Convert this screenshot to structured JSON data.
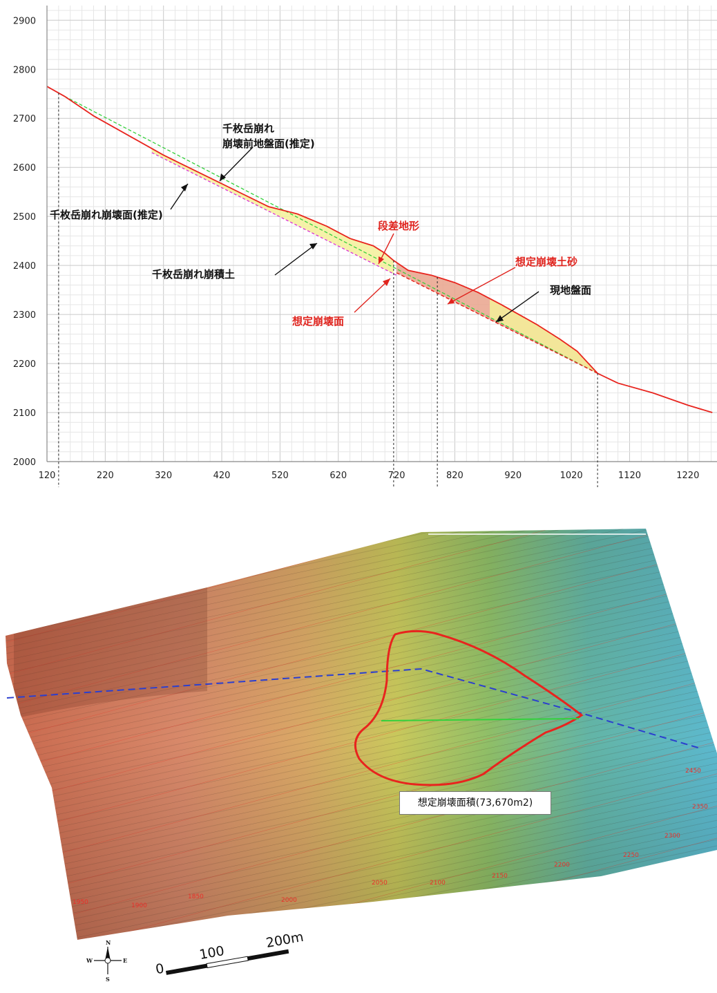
{
  "chart_data": {
    "type": "line",
    "title": "",
    "xlabel": "",
    "ylabel": "",
    "xlim": [
      120,
      1270
    ],
    "ylim": [
      2000,
      2930
    ],
    "x_ticks": [
      "120",
      "220",
      "320",
      "420",
      "520",
      "620",
      "720",
      "820",
      "920",
      "1020",
      "1120",
      "1220"
    ],
    "y_ticks": [
      "2000",
      "2100",
      "2200",
      "2300",
      "2400",
      "2500",
      "2600",
      "2700",
      "2800",
      "2900"
    ],
    "grid": true,
    "series": [
      {
        "name": "現地盤面",
        "color": "#e8241e",
        "points": [
          [
            120,
            2765
          ],
          [
            150,
            2745
          ],
          [
            200,
            2705
          ],
          [
            260,
            2665
          ],
          [
            320,
            2625
          ],
          [
            380,
            2590
          ],
          [
            440,
            2555
          ],
          [
            500,
            2520
          ],
          [
            550,
            2505
          ],
          [
            600,
            2480
          ],
          [
            640,
            2455
          ],
          [
            680,
            2440
          ],
          [
            700,
            2425
          ],
          [
            715,
            2410
          ],
          [
            740,
            2390
          ],
          [
            780,
            2380
          ],
          [
            820,
            2365
          ],
          [
            860,
            2345
          ],
          [
            900,
            2320
          ],
          [
            960,
            2280
          ],
          [
            1000,
            2250
          ],
          [
            1030,
            2225
          ],
          [
            1065,
            2180
          ],
          [
            1100,
            2160
          ],
          [
            1160,
            2140
          ],
          [
            1220,
            2115
          ],
          [
            1262,
            2100
          ]
        ]
      },
      {
        "name": "千枚岳崩れ崩壊前地盤面(推定)",
        "color": "#33d13c",
        "points": [
          [
            150,
            2745
          ],
          [
            1065,
            2180
          ]
        ]
      },
      {
        "name": "千枚岳崩れ崩壊面(推定)",
        "color": "#d930d9",
        "points": [
          [
            300,
            2630
          ],
          [
            720,
            2380
          ]
        ]
      },
      {
        "name": "想定崩壊面",
        "color": "#e8241e",
        "points": [
          [
            720,
            2385
          ],
          [
            1065,
            2180
          ]
        ]
      }
    ],
    "annotations": [
      {
        "text": "千枚岳崩れ",
        "color": "#111111"
      },
      {
        "text": "崩壊前地盤面(推定)",
        "color": "#111111"
      },
      {
        "text": "千枚岳崩れ崩壊面(推定)",
        "color": "#111111"
      },
      {
        "text": "千枚岳崩れ崩積土",
        "color": "#111111"
      },
      {
        "text": "段差地形",
        "color": "#e0241e"
      },
      {
        "text": "想定崩壊土砂",
        "color": "#e0241e"
      },
      {
        "text": "現地盤面",
        "color": "#111111"
      },
      {
        "text": "想定崩壊面",
        "color": "#e0241e"
      }
    ],
    "vertical_guides_x": [
      140,
      715,
      790,
      1065
    ]
  },
  "map": {
    "area_label": "想定崩壊面積(73,670m2)",
    "scale": {
      "zero": "0",
      "mid": "100",
      "end": "200m"
    },
    "compass": {
      "n": "N",
      "s": "S",
      "e": "E",
      "w": "W"
    },
    "contour_labels": [
      "1950",
      "1900",
      "1850",
      "2000",
      "2050",
      "2100",
      "2150",
      "2200",
      "2250",
      "2300",
      "2350",
      "2450"
    ]
  },
  "colors": {
    "ground": "#e8241e",
    "pre_collapse": "#33d13c",
    "old_slip": "#d930d9",
    "deposit_fill": "#f5f09a",
    "planned_fill": "#e9a38c",
    "section_line": "#2b3fcf"
  }
}
